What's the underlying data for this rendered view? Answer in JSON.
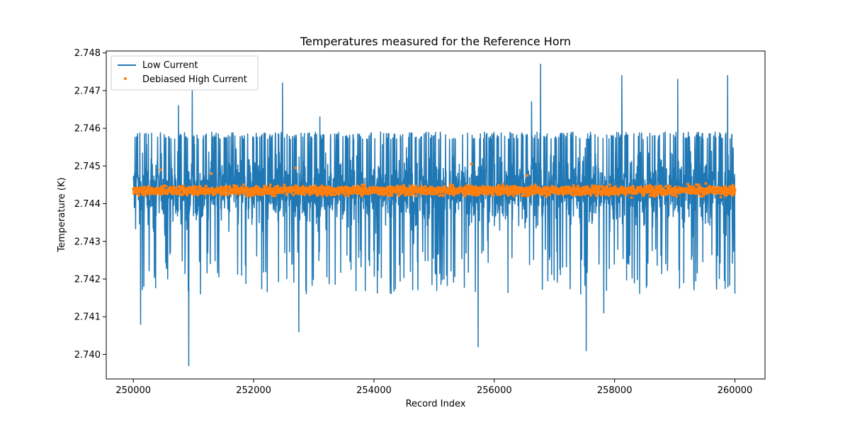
{
  "chart_data": {
    "type": "line",
    "title": "Temperatures measured for the Reference Horn",
    "xlabel": "Record Index",
    "ylabel": "Temperature (K)",
    "xlim": [
      249550,
      260500
    ],
    "ylim": [
      2.73935,
      2.74805
    ],
    "x_ticks": [
      250000,
      252000,
      254000,
      256000,
      258000,
      260000
    ],
    "x_tick_labels": [
      "250000",
      "252000",
      "254000",
      "256000",
      "258000",
      "260000"
    ],
    "y_ticks": [
      2.74,
      2.741,
      2.742,
      2.743,
      2.744,
      2.745,
      2.746,
      2.747,
      2.748
    ],
    "y_tick_labels": [
      "2.740",
      "2.741",
      "2.742",
      "2.743",
      "2.744",
      "2.745",
      "2.746",
      "2.747",
      "2.748"
    ],
    "legend_position": "top-left",
    "series": [
      {
        "name": "Low Current",
        "kind": "line",
        "color": "#1f77b4",
        "x_range": [
          250000,
          260000
        ],
        "typical_band": [
          2.7428,
          2.7459
        ],
        "mean": 2.74435,
        "notable_spikes": [
          {
            "x": 250750,
            "y": 2.7466
          },
          {
            "x": 250980,
            "y": 2.747
          },
          {
            "x": 252480,
            "y": 2.7472
          },
          {
            "x": 253100,
            "y": 2.7463
          },
          {
            "x": 256620,
            "y": 2.7467
          },
          {
            "x": 256770,
            "y": 2.7477
          },
          {
            "x": 258120,
            "y": 2.7474
          },
          {
            "x": 259050,
            "y": 2.7473
          },
          {
            "x": 259880,
            "y": 2.7474
          },
          {
            "x": 250120,
            "y": 2.7408
          },
          {
            "x": 250920,
            "y": 2.7397
          },
          {
            "x": 252750,
            "y": 2.7406
          },
          {
            "x": 255730,
            "y": 2.7402
          },
          {
            "x": 257530,
            "y": 2.7401
          },
          {
            "x": 257820,
            "y": 2.7411
          }
        ]
      },
      {
        "name": "Debiased High Current",
        "kind": "scatter",
        "color": "#ff7f0e",
        "x_range": [
          250000,
          260000
        ],
        "mean": 2.74435,
        "typical_band": [
          2.7441,
          2.7447
        ],
        "outliers": [
          {
            "x": 250450,
            "y": 2.7449
          },
          {
            "x": 252700,
            "y": 2.74495
          },
          {
            "x": 255620,
            "y": 2.74505
          },
          {
            "x": 256550,
            "y": 2.74475
          },
          {
            "x": 251300,
            "y": 2.7448
          }
        ]
      }
    ]
  }
}
